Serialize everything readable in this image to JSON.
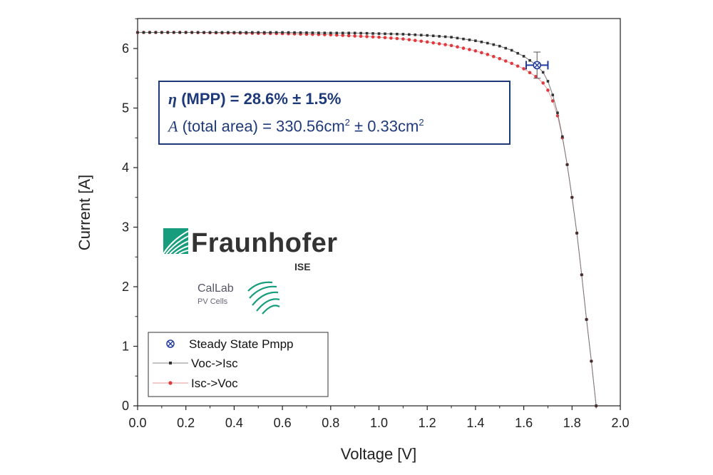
{
  "annotation": {
    "eta_symbol": "η",
    "line1": "(MPP) = 28.6% ± 1.5%",
    "line2_italic": "A",
    "line2_a": "(total area) = 330.56cm",
    "line2_sup1": "2",
    "line2_b": " ± 0.33cm",
    "line2_sup2": "2"
  },
  "logos": {
    "fraunhofer": "Fraunhofer",
    "fraunhofer_sub": "ISE",
    "callab": "CalLab",
    "callab_sub": "PV Cells"
  },
  "colors": {
    "series1": "#333333",
    "series2": "#e0393e",
    "mpp": "#1f3aa0",
    "annotation": "#1f3a7a",
    "fraunhofer_green": "#179c7d"
  },
  "chart_data": {
    "type": "line",
    "xlabel": "Voltage [V]",
    "ylabel": "Current [A]",
    "xlim": [
      0.0,
      2.0
    ],
    "ylim": [
      0,
      6.5
    ],
    "xticks": [
      "0.0",
      "0.2",
      "0.4",
      "0.6",
      "0.8",
      "1.0",
      "1.2",
      "1.4",
      "1.6",
      "1.8",
      "2.0"
    ],
    "yticks": [
      "0",
      "1",
      "2",
      "3",
      "4",
      "5",
      "6"
    ],
    "grid": false,
    "legend_position": "bottom-left",
    "series": [
      {
        "name": "Voc->Isc",
        "color": "#333333",
        "x": [
          0.0,
          0.2,
          0.4,
          0.6,
          0.8,
          0.9,
          1.0,
          1.1,
          1.2,
          1.3,
          1.4,
          1.45,
          1.5,
          1.55,
          1.6,
          1.65,
          1.68,
          1.7,
          1.72,
          1.74,
          1.76,
          1.78,
          1.8,
          1.82,
          1.84,
          1.86,
          1.88,
          1.9
        ],
        "y": [
          6.27,
          6.27,
          6.27,
          6.27,
          6.26,
          6.26,
          6.25,
          6.24,
          6.22,
          6.19,
          6.13,
          6.09,
          6.04,
          5.97,
          5.87,
          5.73,
          5.6,
          5.45,
          5.22,
          4.92,
          4.52,
          4.05,
          3.5,
          2.9,
          2.2,
          1.45,
          0.75,
          0.0
        ]
      },
      {
        "name": "Isc->Voc",
        "color": "#e0393e",
        "x": [
          0.0,
          0.2,
          0.4,
          0.6,
          0.8,
          0.9,
          1.0,
          1.1,
          1.2,
          1.3,
          1.4,
          1.45,
          1.5,
          1.55,
          1.6,
          1.65,
          1.68,
          1.7,
          1.72,
          1.74,
          1.76,
          1.78,
          1.8,
          1.82,
          1.84,
          1.86,
          1.88,
          1.9
        ],
        "y": [
          6.27,
          6.27,
          6.26,
          6.25,
          6.23,
          6.21,
          6.19,
          6.16,
          6.11,
          6.05,
          5.96,
          5.9,
          5.83,
          5.75,
          5.66,
          5.53,
          5.42,
          5.3,
          5.12,
          4.87,
          4.5,
          4.05,
          3.5,
          2.9,
          2.2,
          1.45,
          0.75,
          0.0
        ]
      },
      {
        "name": "Steady State Pmpp",
        "color": "#1f3aa0",
        "x": [
          1.655
        ],
        "y": [
          5.72
        ],
        "x_err": 0.045,
        "y_err": 0.22
      }
    ]
  }
}
